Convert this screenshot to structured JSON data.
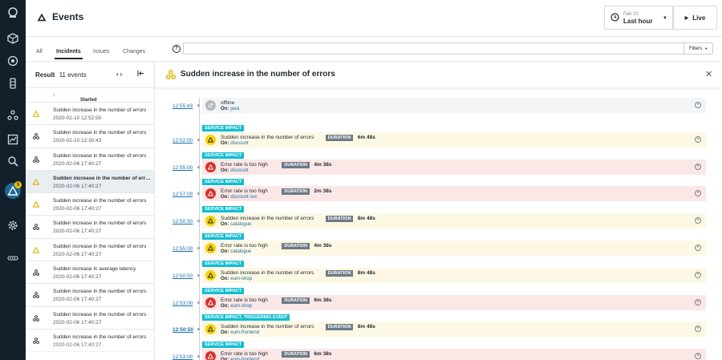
{
  "header": {
    "title": "Events",
    "time_date": "Feb 10",
    "time_value": "Last hour",
    "live_label": "Live"
  },
  "nav": {
    "badge_count": "5"
  },
  "tabs": [
    {
      "label": "All"
    },
    {
      "label": "Incidents"
    },
    {
      "label": "Issues"
    },
    {
      "label": "Changes"
    }
  ],
  "search": {
    "placeholder": "",
    "filters_label": "Filters"
  },
  "list": {
    "result_label": "Result",
    "result_count": "11 events",
    "column_started": "Started",
    "rows": [
      {
        "title": "Sudden increase in the number of errors",
        "date": "2020-02-10 12:52:50",
        "icon": "warning-icon"
      },
      {
        "title": "Sudden increase in the number of errors",
        "date": "2020-02-10 12:30:43",
        "icon": "cluster-icon"
      },
      {
        "title": "Sudden increase in the number of errors",
        "date": "2020-02-06 17:40:27",
        "icon": "cluster-icon"
      },
      {
        "title": "Sudden increase in the number of errors",
        "date": "2020-02-06 17:40:27",
        "icon": "warning-icon"
      },
      {
        "title": "Sudden increase in the number of errors",
        "date": "2020-02-06 17:40:27",
        "icon": "warning-icon"
      },
      {
        "title": "Sudden increase in the number of errors",
        "date": "2020-02-06 17:40:27",
        "icon": "cluster-icon"
      },
      {
        "title": "Sudden increase in the number of errors",
        "date": "2020-02-06 17:40:27",
        "icon": "warning-icon"
      },
      {
        "title": "Sudden increase in average latency",
        "date": "2020-02-06 17:40:27",
        "icon": "cluster-icon"
      },
      {
        "title": "Sudden increase in the number of errors",
        "date": "2020-02-06 17:40:27",
        "icon": "cluster-icon"
      },
      {
        "title": "Sudden increase in the number of errors",
        "date": "2020-02-06 17:40:27",
        "icon": "cluster-icon"
      },
      {
        "title": "Sudden increase in the number of errors",
        "date": "2020-02-06 17:40:27",
        "icon": "cluster-icon"
      }
    ]
  },
  "detail": {
    "title": "Sudden increase in the number of errors",
    "on_label": "On:",
    "duration_label": "DURATION",
    "events": [
      {
        "time": "12:55:43",
        "tag": "",
        "text": "offline",
        "on": "java",
        "color": "gray",
        "duration": ""
      },
      {
        "time": "12:52:50",
        "tag": "SERVICE IMPACT",
        "text": "Sudden increase in the number of errors",
        "on": "discount",
        "color": "yellow",
        "duration": "6m 48s"
      },
      {
        "time": "12:55:00",
        "tag": "SERVICE IMPACT",
        "text": "Error rate is too high",
        "on": "discount",
        "color": "red",
        "duration": "4m 38s"
      },
      {
        "time": "12:57:00",
        "tag": "SERVICE IMPACT",
        "text": "Error rate is too high",
        "on": "discount-svc",
        "color": "red",
        "duration": "2m 38s"
      },
      {
        "time": "12:50:50",
        "tag": "SERVICE IMPACT",
        "text": "Sudden increase in the number of errors",
        "on": "catalogue",
        "color": "yellow",
        "duration": "8m 48s"
      },
      {
        "time": "12:55:00",
        "tag": "SERVICE IMPACT",
        "text": "Error rate is too high",
        "on": "catalogue",
        "color": "yellow",
        "duration": "4m 38s"
      },
      {
        "time": "12:50:50",
        "tag": "SERVICE IMPACT",
        "text": "Sudden increase in the number of errors",
        "on": "eum-shop",
        "color": "yellow",
        "duration": "8m 48s"
      },
      {
        "time": "12:53:00",
        "tag": "SERVICE IMPACT",
        "text": "Error rate is too high",
        "on": "eum-shop",
        "color": "red",
        "duration": "6m 38s"
      },
      {
        "time": "12:50:50",
        "tag": "SERVICE IMPACT, TRIGGERING EVENT",
        "text": "Sudden increase in the number of errors",
        "on": "eum-frontend",
        "color": "yellow",
        "duration": "8m 48s"
      },
      {
        "time": "12:53:00",
        "tag": "SERVICE IMPACT",
        "text": "Error rate is too high",
        "on": "eum-frontend",
        "color": "red",
        "duration": "6m 38s"
      }
    ]
  },
  "colors": {
    "nav_bg": "#13202c",
    "accent": "#13bdd0",
    "warning": "#f5d100",
    "critical": "#d8322b",
    "link": "#1b6fa8"
  }
}
